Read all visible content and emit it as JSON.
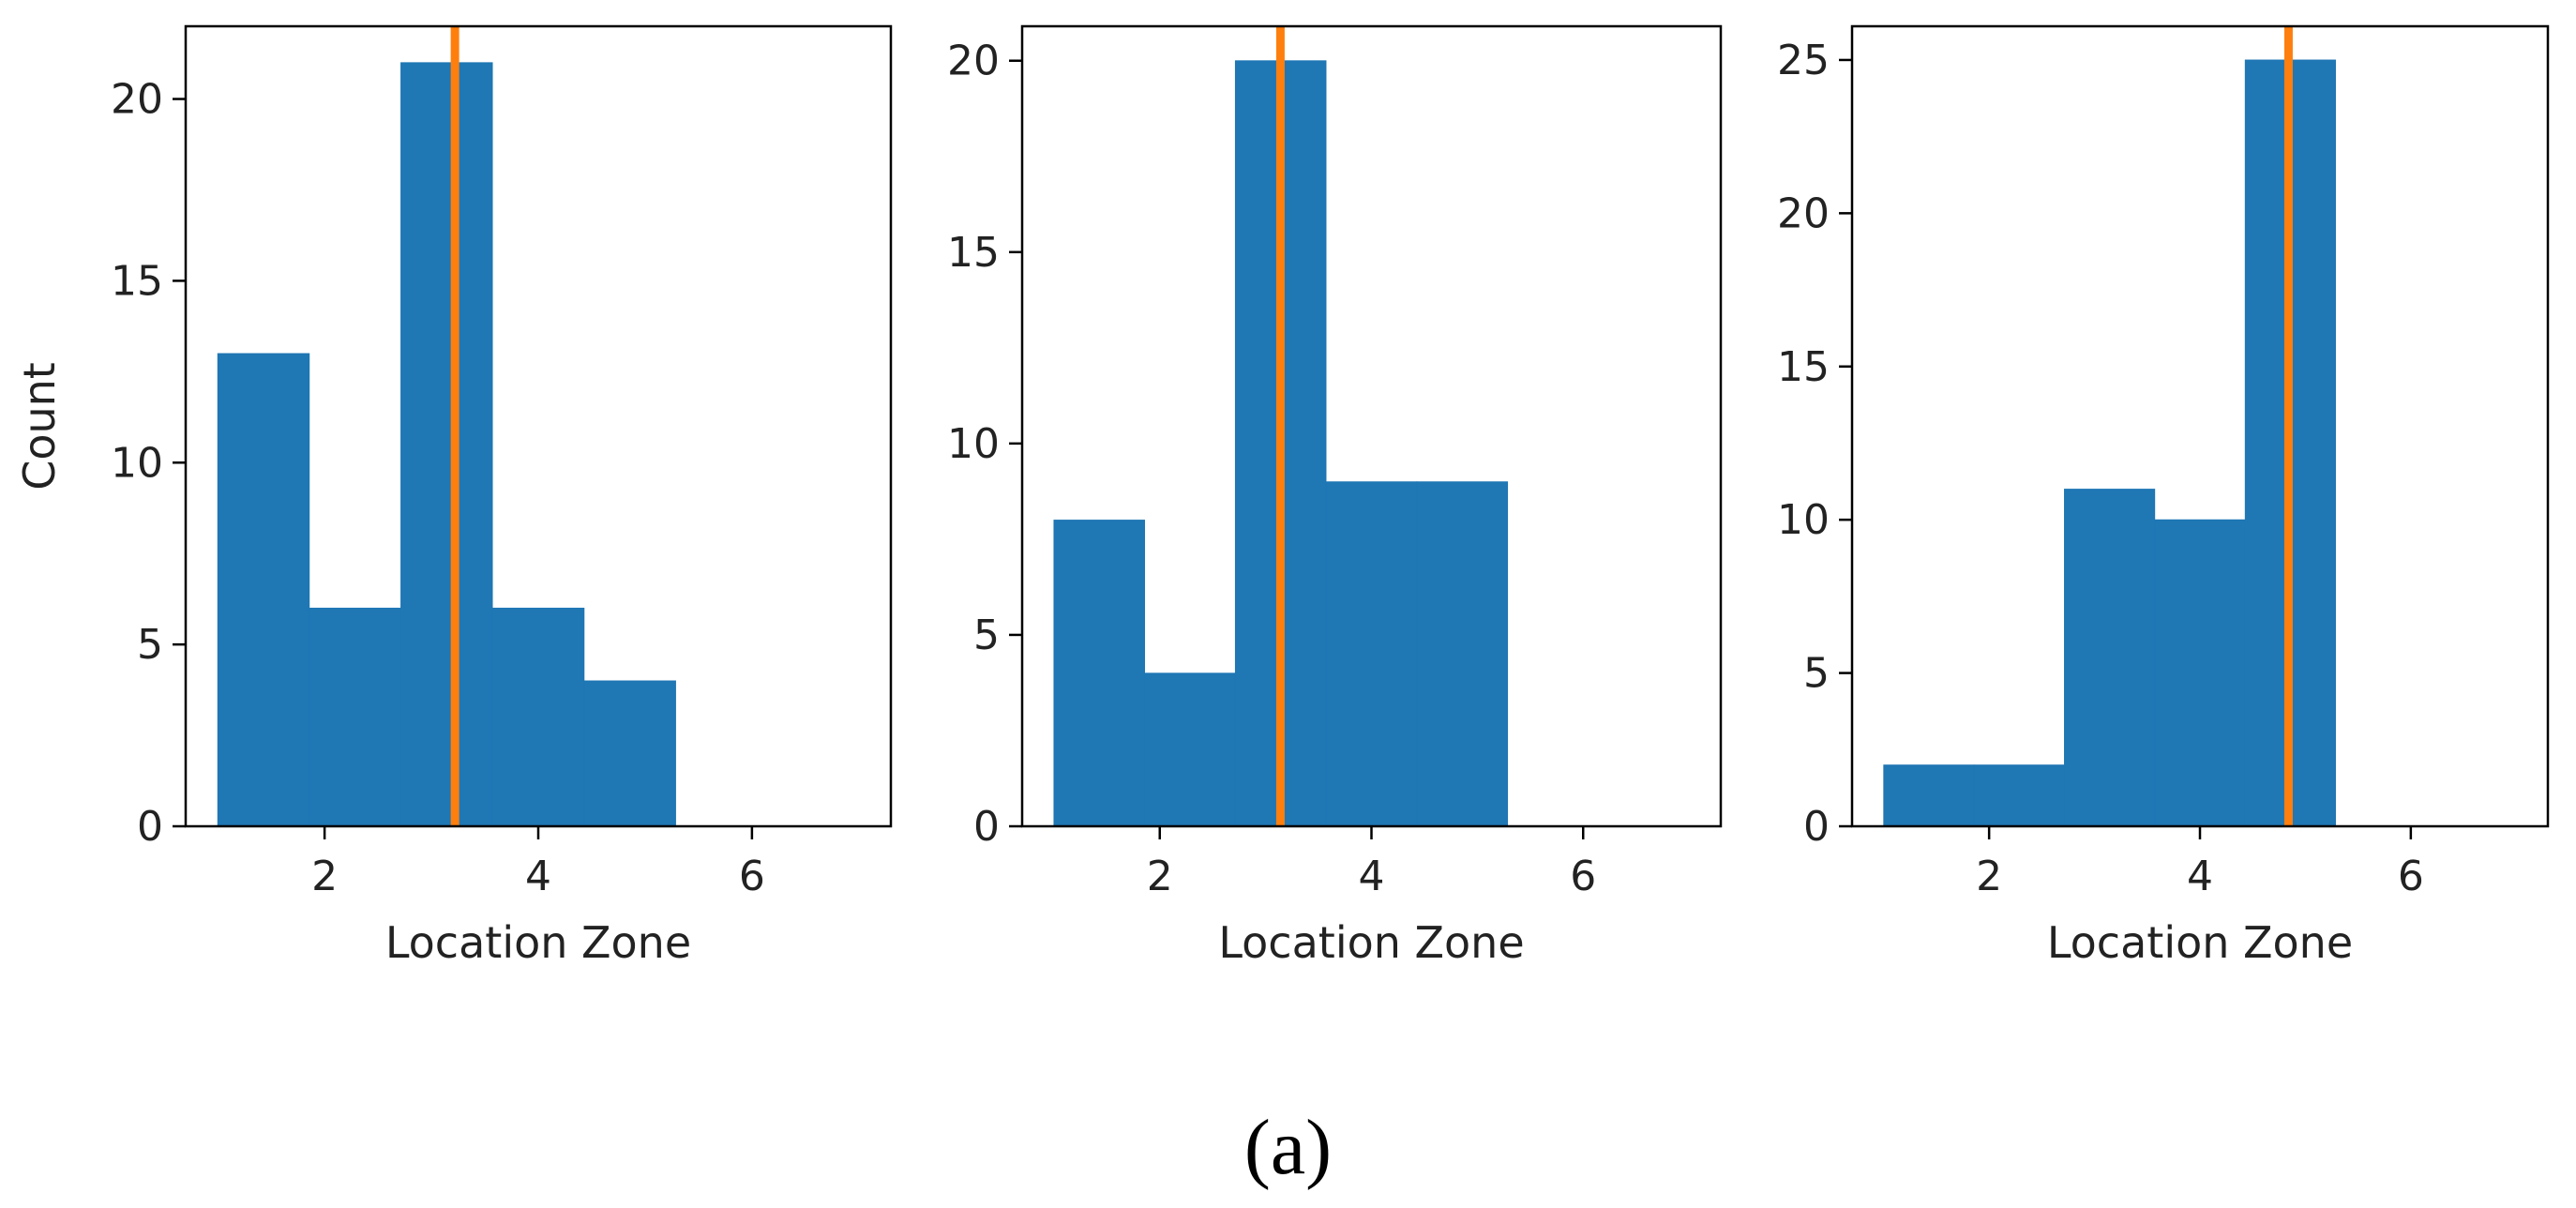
{
  "chart_data": [
    {
      "type": "bar",
      "xlabel": "Location Zone",
      "ylabel": "Count",
      "xlim": [
        0.7,
        7.3
      ],
      "ylim": [
        0,
        22.0
      ],
      "xticks": [
        2,
        4,
        6
      ],
      "yticks": [
        0,
        5,
        10,
        15,
        20
      ],
      "bin_edges": [
        1.0,
        1.857,
        2.714,
        3.571,
        4.429,
        5.286,
        6.143,
        7.0
      ],
      "values": [
        13,
        6,
        21,
        6,
        4,
        0,
        0
      ],
      "vline": 3.22,
      "colors": {
        "bars": "#1f77b4",
        "vline": "#ff7f0e"
      }
    },
    {
      "type": "bar",
      "xlabel": "Location Zone",
      "ylabel": "",
      "xlim": [
        0.7,
        7.3
      ],
      "ylim": [
        0,
        20.9
      ],
      "xticks": [
        2,
        4,
        6
      ],
      "yticks": [
        0,
        5,
        10,
        15,
        20
      ],
      "bin_edges": [
        1.0,
        1.857,
        2.714,
        3.571,
        4.429,
        5.286,
        6.143,
        7.0
      ],
      "values": [
        8,
        4,
        20,
        9,
        9,
        0,
        0
      ],
      "vline": 3.14,
      "colors": {
        "bars": "#1f77b4",
        "vline": "#ff7f0e"
      }
    },
    {
      "type": "bar",
      "xlabel": "Location Zone",
      "ylabel": "",
      "xlim": [
        0.7,
        7.3
      ],
      "ylim": [
        0,
        26.1
      ],
      "xticks": [
        2,
        4,
        6
      ],
      "yticks": [
        0,
        5,
        10,
        15,
        20,
        25
      ],
      "bin_edges": [
        1.0,
        1.857,
        2.714,
        3.571,
        4.429,
        5.286,
        6.143,
        7.0
      ],
      "values": [
        2,
        2,
        11,
        10,
        25,
        0,
        0
      ],
      "vline": 4.84,
      "colors": {
        "bars": "#1f77b4",
        "vline": "#ff7f0e"
      }
    }
  ],
  "caption": "(a)"
}
